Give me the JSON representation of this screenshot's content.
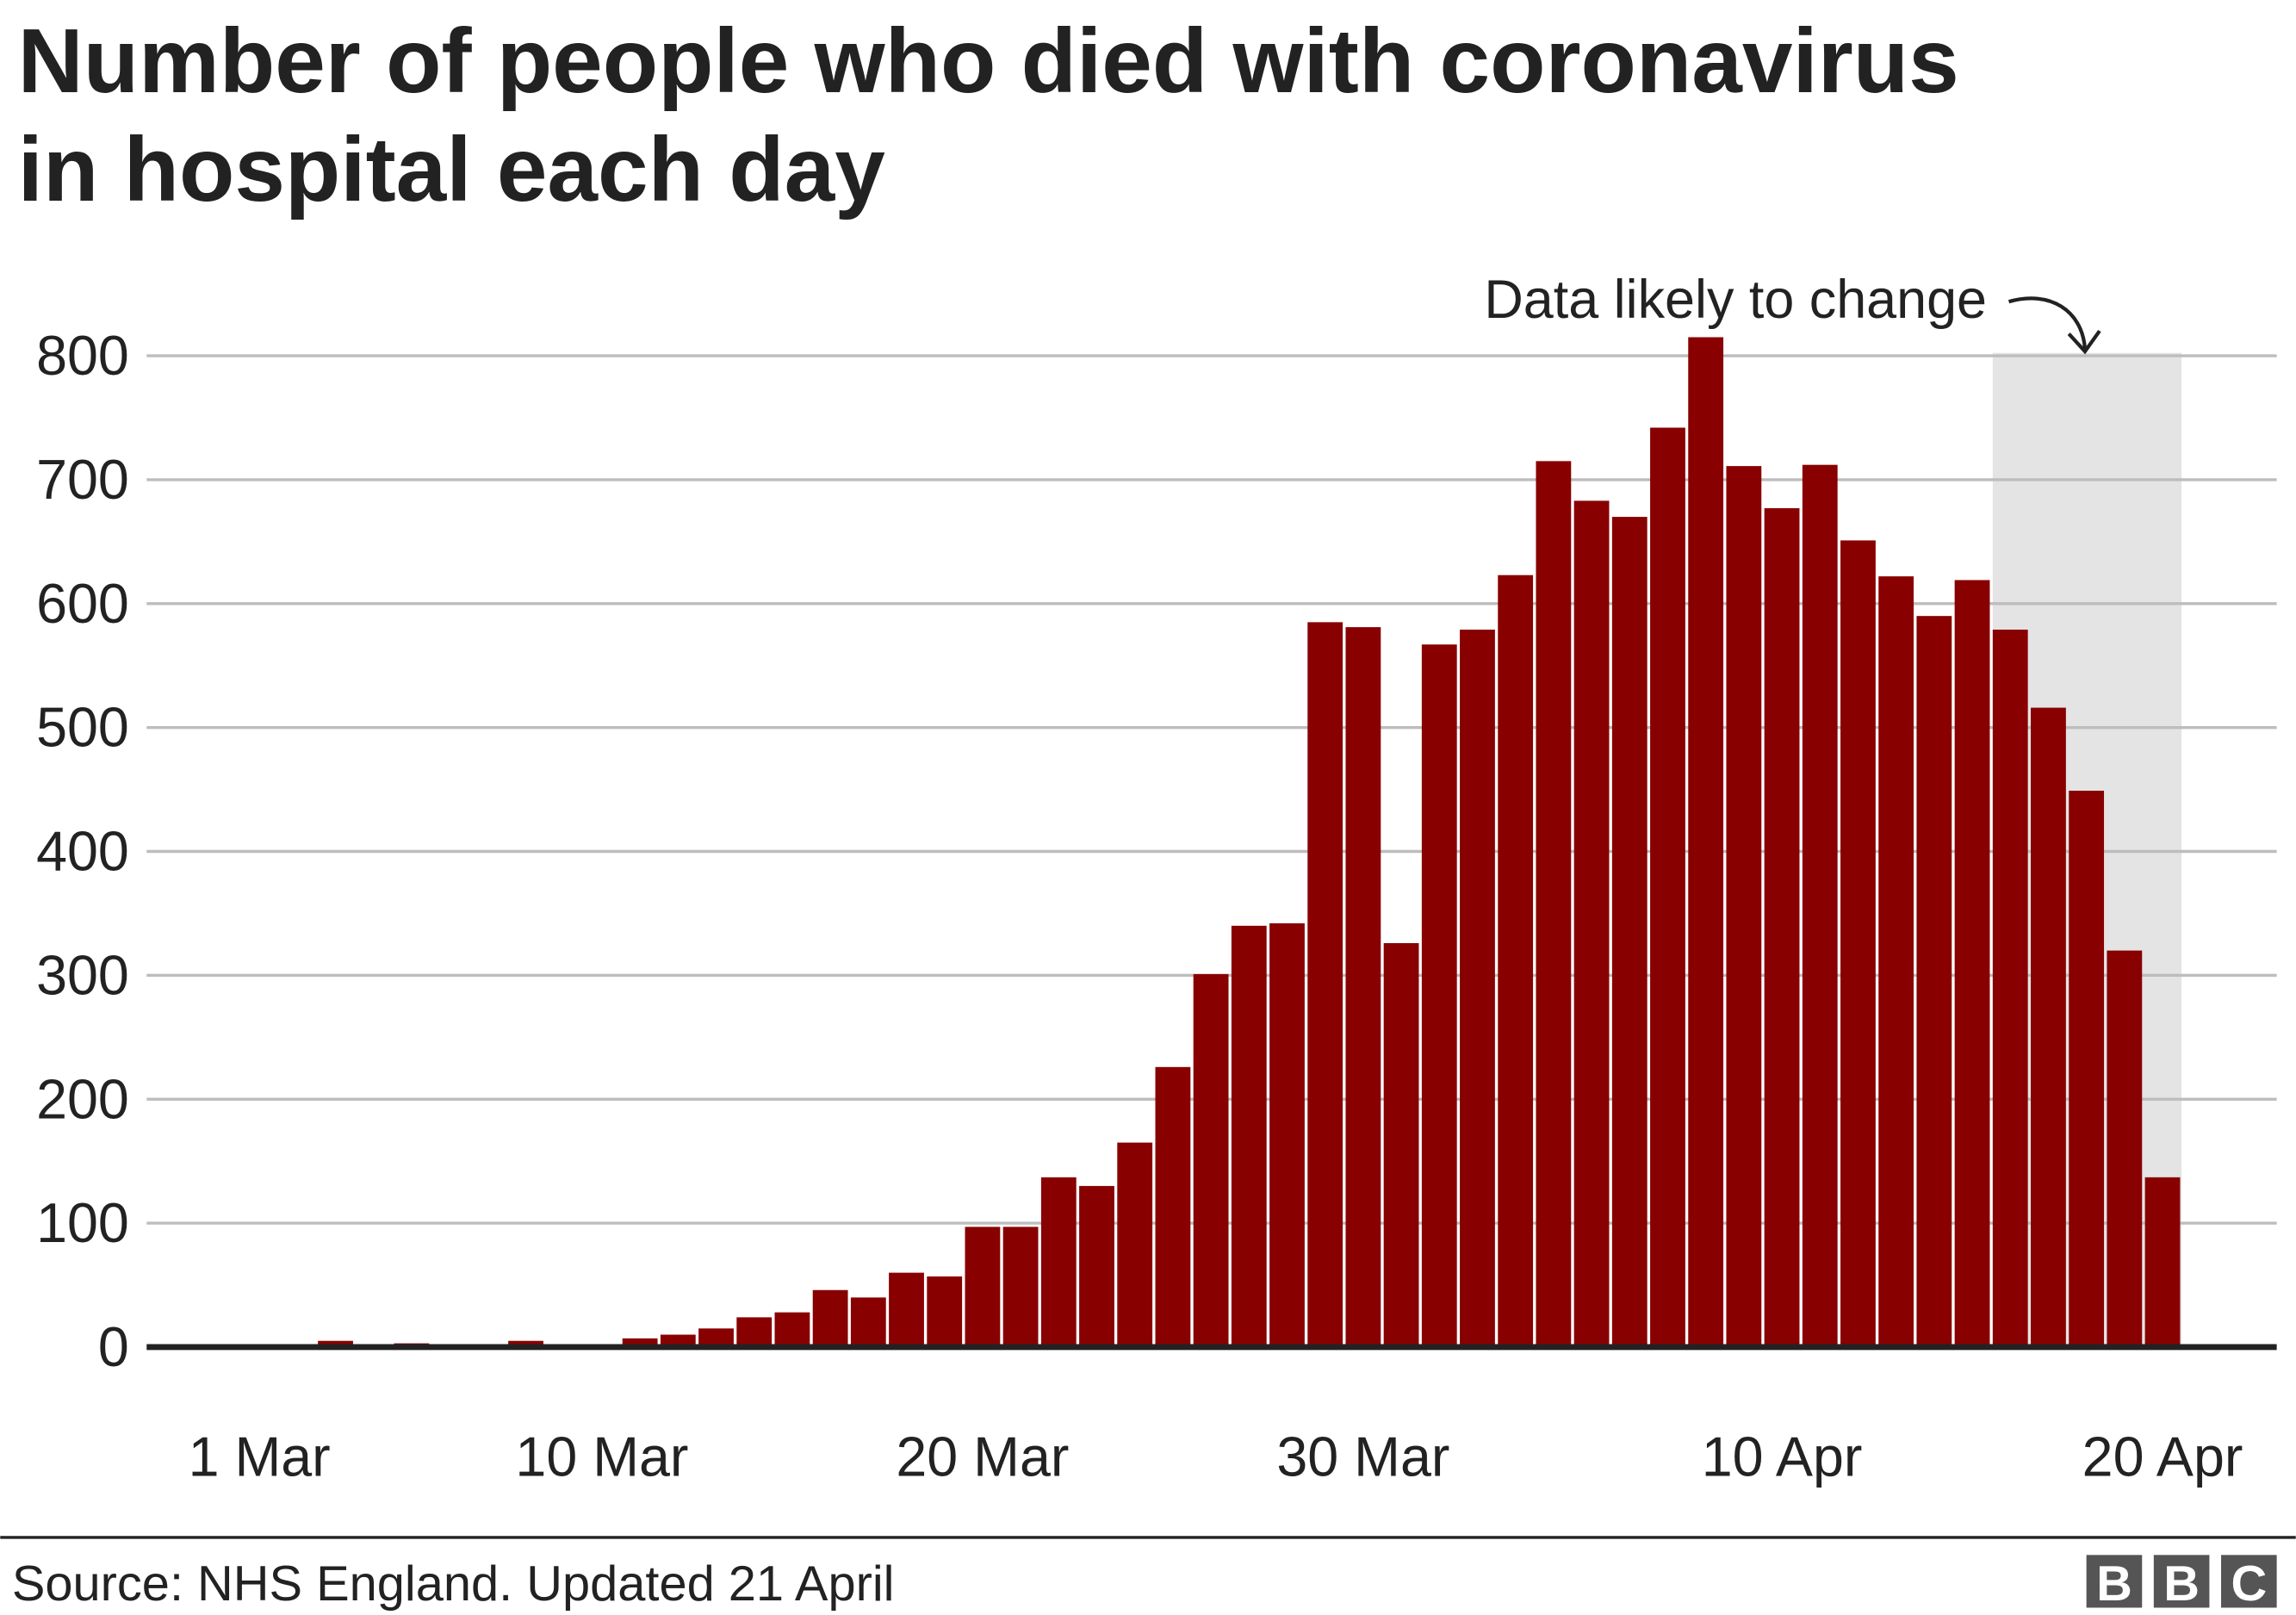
{
  "chart_data": {
    "type": "bar",
    "title": "Number of people who died with coronavirus in hospital each day",
    "title_lines": [
      "Number of people who died with coronavirus",
      "in hospital each day"
    ],
    "xlabel": "",
    "ylabel": "",
    "ylim": [
      0,
      800
    ],
    "yticks": [
      "0",
      "100",
      "200",
      "300",
      "400",
      "500",
      "600",
      "700",
      "800"
    ],
    "xtick_labels": [
      "1 Mar",
      "10 Mar",
      "20 Mar",
      "30 Mar",
      "10 Apr",
      "20 Apr"
    ],
    "grid": true,
    "categories": [
      "1 Mar",
      "2 Mar",
      "3 Mar",
      "4 Mar",
      "5 Mar",
      "6 Mar",
      "7 Mar",
      "8 Mar",
      "9 Mar",
      "10 Mar",
      "11 Mar",
      "12 Mar",
      "13 Mar",
      "14 Mar",
      "15 Mar",
      "16 Mar",
      "17 Mar",
      "18 Mar",
      "19 Mar",
      "20 Mar",
      "21 Mar",
      "22 Mar",
      "23 Mar",
      "24 Mar",
      "25 Mar",
      "26 Mar",
      "27 Mar",
      "28 Mar",
      "29 Mar",
      "30 Mar",
      "31 Mar",
      "1 Apr",
      "2 Apr",
      "3 Apr",
      "4 Apr",
      "5 Apr",
      "6 Apr",
      "7 Apr",
      "8 Apr",
      "9 Apr",
      "10 Apr",
      "11 Apr",
      "12 Apr",
      "13 Apr",
      "14 Apr",
      "15 Apr",
      "16 Apr",
      "17 Apr",
      "18 Apr",
      "19 Apr",
      "20 Apr"
    ],
    "values": [
      0,
      0,
      5,
      0,
      3,
      0,
      0,
      5,
      0,
      0,
      7,
      10,
      15,
      24,
      28,
      46,
      40,
      60,
      57,
      97,
      97,
      137,
      130,
      165,
      226,
      301,
      340,
      342,
      585,
      581,
      326,
      567,
      579,
      623,
      715,
      683,
      670,
      742,
      815,
      711,
      677,
      712,
      651,
      622,
      590,
      619,
      579,
      516,
      449,
      320,
      137
    ],
    "shaded_range": [
      "16 Apr",
      "20 Apr"
    ],
    "annotation": "Data likely to change",
    "bar_color": "#880000",
    "shade_color": "#e4e4e4"
  },
  "footer": {
    "source": "Source: NHS England. Updated 21 April",
    "logo": "BBC"
  }
}
